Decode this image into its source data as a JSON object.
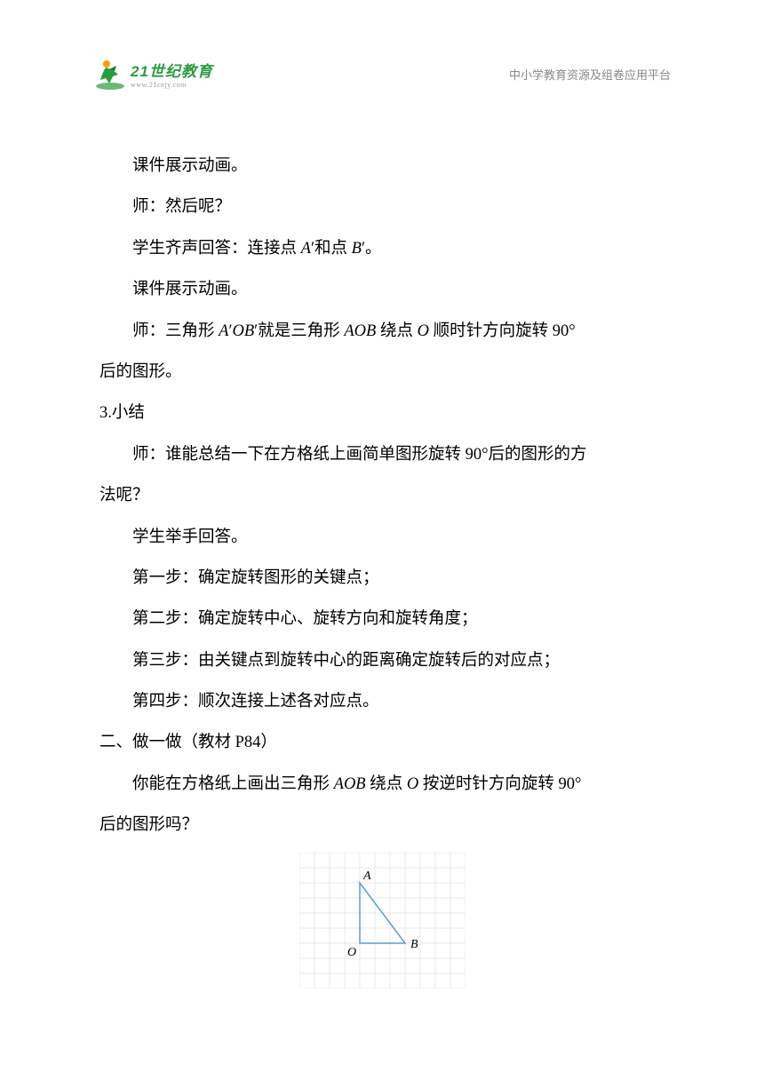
{
  "header": {
    "logo_main": "21世纪教育",
    "logo_sub": "www.21cnjy.com",
    "right_text": "中小学教育资源及组卷应用平台"
  },
  "content": {
    "p1": "课件展示动画。",
    "p2": "师：然后呢？",
    "p3_pre": "学生齐声回答：连接点 ",
    "p3_i1": "A",
    "p3_mid": "′和点 ",
    "p3_i2": "B",
    "p3_post": "′。",
    "p4": "课件展示动画。",
    "p5_pre": "师：三角形 ",
    "p5_i1": "A",
    "p5_m1": "′",
    "p5_i2": "OB",
    "p5_m2": "′就是三角形 ",
    "p5_i3": "AOB",
    "p5_m3": " 绕点 ",
    "p5_i4": "O",
    "p5_m4": " 顺时针方向旋转 90°",
    "p5b": "后的图形。",
    "p6": "3.小结",
    "p7": "师：谁能总结一下在方格纸上画简单图形旋转 90°后的图形的方",
    "p7b": "法呢？",
    "p8": "学生举手回答。",
    "p9": "第一步：确定旋转图形的关键点；",
    "p10": "第二步：确定旋转中心、旋转方向和旋转角度；",
    "p11": "第三步：由关键点到旋转中心的距离确定旋转后的对应点；",
    "p12": "第四步：顺次连接上述各对应点。",
    "p13": "二、做一做（教材 P84）",
    "p14_pre": "你能在方格纸上画出三角形 ",
    "p14_i1": "AOB",
    "p14_m1": " 绕点 ",
    "p14_i2": "O",
    "p14_m2": " 按逆时针方向旋转 90°",
    "p14b": "后的图形吗？"
  },
  "figure": {
    "grid_cols": 11,
    "grid_rows": 9,
    "cell_size": 17,
    "grid_color": "#e8e8e8",
    "triangle_color": "#5b9bd5",
    "triangle_stroke_width": 1.5,
    "label_color": "#000000",
    "label_fontsize": 14,
    "point_O": {
      "col": 4,
      "row": 6,
      "label": "O"
    },
    "point_A": {
      "col": 4,
      "row": 2,
      "label": "A"
    },
    "point_B": {
      "col": 7,
      "row": 6,
      "label": "B"
    }
  },
  "logo_colors": {
    "green": "#2a9d3f",
    "orange": "#f59e0b",
    "dark_green": "#1a7a2f"
  }
}
